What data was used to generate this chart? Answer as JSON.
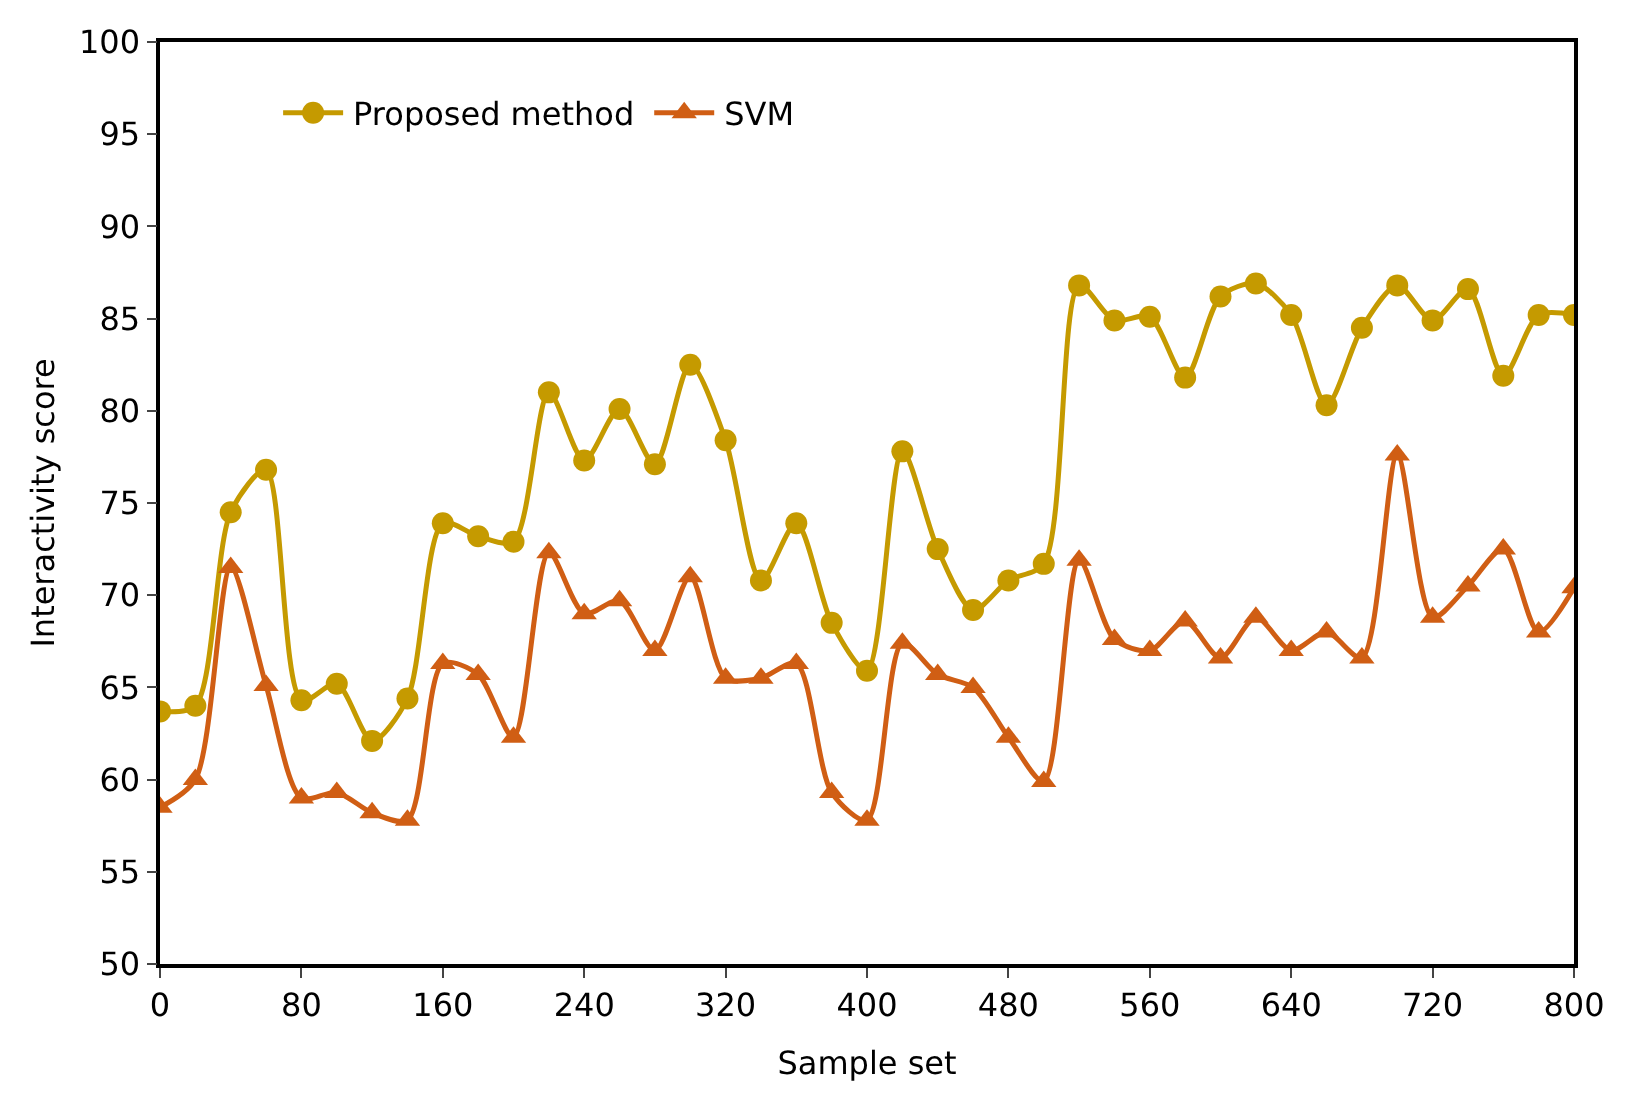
{
  "chart_data": {
    "type": "line",
    "xlabel": "Sample set",
    "ylabel": "Interactivity score",
    "x": [
      0,
      20,
      40,
      60,
      80,
      100,
      120,
      140,
      160,
      180,
      200,
      220,
      240,
      260,
      280,
      300,
      320,
      340,
      360,
      380,
      400,
      420,
      440,
      460,
      480,
      500,
      520,
      540,
      560,
      580,
      600,
      620,
      640,
      660,
      680,
      700,
      720,
      740,
      760,
      780,
      800
    ],
    "series": [
      {
        "name": "Proposed method",
        "color": "#c59a00",
        "marker": "circle",
        "values": [
          63.7,
          64.0,
          74.5,
          76.8,
          64.3,
          65.2,
          62.1,
          64.4,
          73.9,
          73.2,
          72.9,
          81.0,
          77.3,
          80.1,
          77.1,
          82.5,
          78.4,
          70.8,
          73.9,
          68.5,
          65.9,
          77.8,
          72.5,
          69.2,
          70.8,
          71.7,
          86.8,
          84.9,
          85.1,
          81.8,
          86.2,
          86.9,
          85.2,
          80.3,
          84.5,
          86.8,
          84.9,
          86.6,
          81.9,
          85.2,
          85.2
        ]
      },
      {
        "name": "SVM",
        "color": "#d05e14",
        "marker": "triangle",
        "values": [
          58.5,
          60.0,
          71.5,
          65.1,
          59.0,
          59.3,
          58.2,
          57.8,
          66.3,
          65.7,
          62.3,
          72.3,
          69.0,
          69.7,
          67.0,
          71.0,
          65.5,
          65.5,
          66.3,
          59.3,
          57.8,
          67.4,
          65.7,
          65.0,
          62.3,
          59.9,
          71.9,
          67.6,
          67.0,
          68.6,
          66.6,
          68.8,
          67.0,
          68.0,
          66.6,
          77.6,
          68.8,
          70.5,
          72.5,
          68.0,
          70.4
        ]
      }
    ],
    "xlim": [
      0,
      800
    ],
    "xticks": [
      0,
      80,
      160,
      240,
      320,
      400,
      480,
      560,
      640,
      720,
      800
    ],
    "ylim": [
      50,
      100
    ],
    "yticks": [
      50,
      55,
      60,
      65,
      70,
      75,
      80,
      85,
      90,
      95,
      100
    ],
    "legend": "top left",
    "line_style": "solid"
  }
}
